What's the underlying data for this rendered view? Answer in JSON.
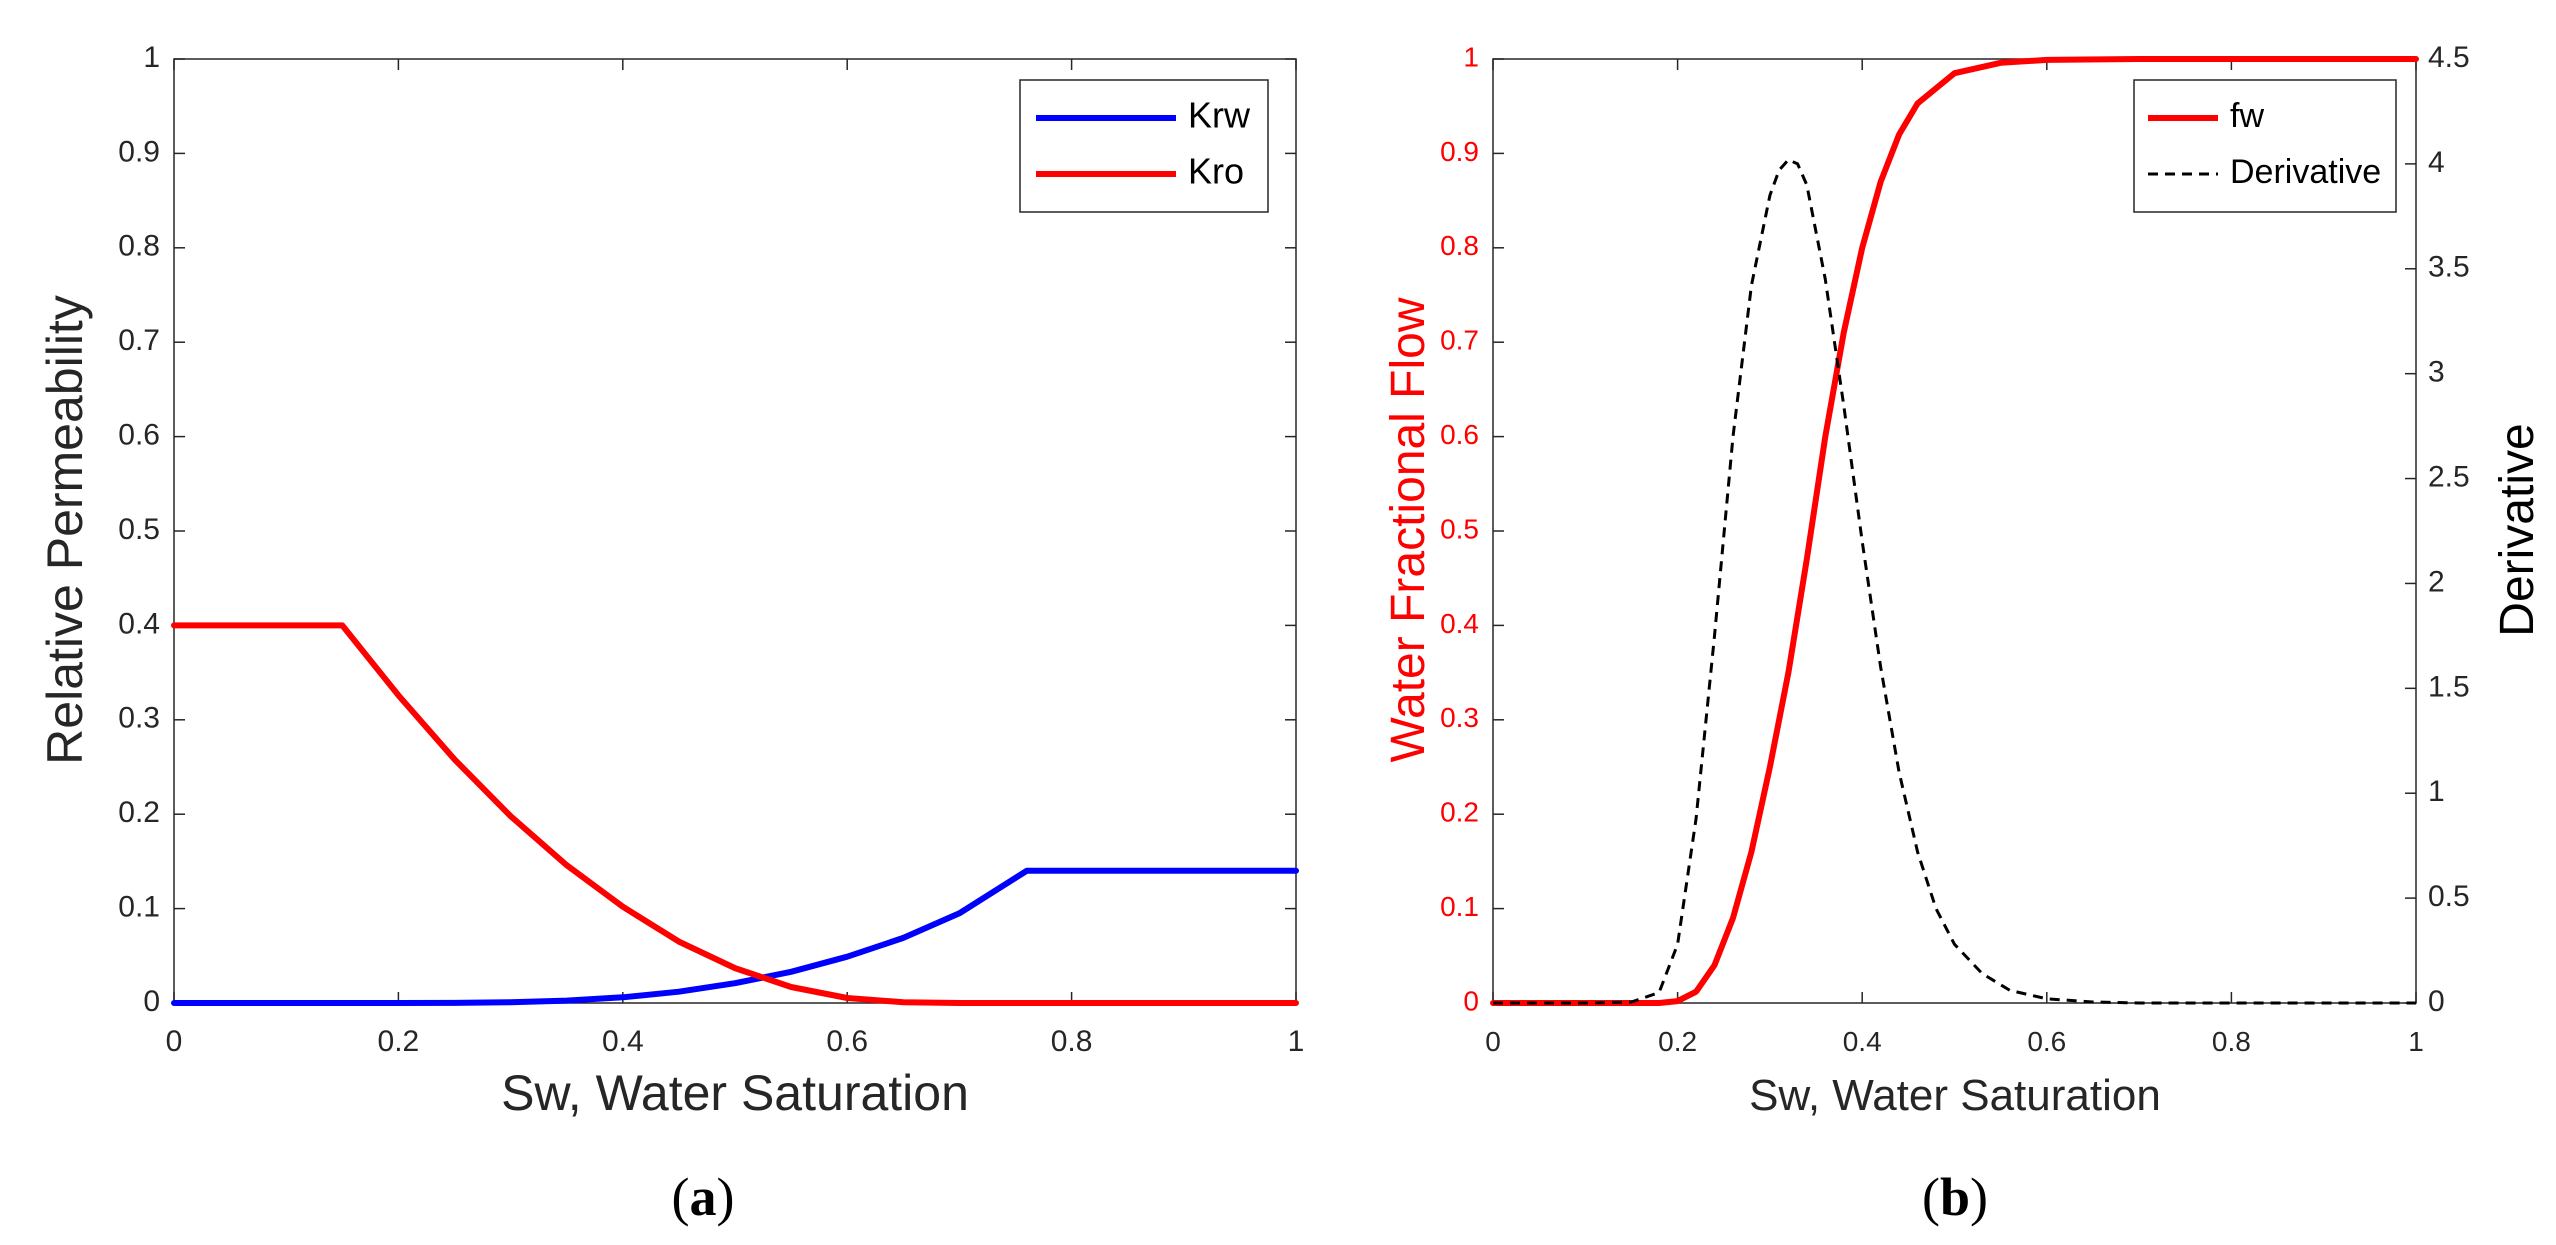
{
  "chart_data": [
    {
      "panel": "a",
      "panel_label": {
        "open": "(",
        "letter": "a",
        "close": ")"
      },
      "type": "line",
      "title": "",
      "xlabel": "Sw, Water Saturation",
      "ylabel": "Relative Permeability",
      "xlim": [
        0,
        1
      ],
      "ylim": [
        0,
        1
      ],
      "xticks": [
        "0",
        "0.2",
        "0.4",
        "0.6",
        "0.8",
        "1"
      ],
      "yticks": [
        "0",
        "0.1",
        "0.2",
        "0.3",
        "0.4",
        "0.5",
        "0.6",
        "0.7",
        "0.8",
        "0.9",
        "1"
      ],
      "grid": false,
      "legend_position": "top-right",
      "series": [
        {
          "name": "Krw",
          "color": "#0000ff",
          "style": "solid",
          "x": [
            0,
            0.1,
            0.2,
            0.25,
            0.3,
            0.35,
            0.4,
            0.45,
            0.5,
            0.55,
            0.6,
            0.65,
            0.7,
            0.76,
            0.8,
            0.9,
            1.0
          ],
          "y": [
            0,
            0,
            0,
            0.0001,
            0.0008,
            0.0025,
            0.006,
            0.012,
            0.021,
            0.033,
            0.049,
            0.069,
            0.095,
            0.14,
            0.14,
            0.14,
            0.14
          ]
        },
        {
          "name": "Kro",
          "color": "#ff0000",
          "style": "solid",
          "x": [
            0,
            0.05,
            0.1,
            0.15,
            0.2,
            0.25,
            0.3,
            0.35,
            0.4,
            0.45,
            0.5,
            0.55,
            0.6,
            0.65,
            0.7,
            0.76,
            0.8,
            0.9,
            1.0
          ],
          "y": [
            0.4,
            0.4,
            0.4,
            0.4,
            0.326,
            0.258,
            0.198,
            0.146,
            0.102,
            0.065,
            0.037,
            0.017,
            0.0053,
            0.0008,
            0,
            0,
            0,
            0,
            0
          ]
        }
      ]
    },
    {
      "panel": "b",
      "panel_label": {
        "open": "(",
        "letter": "b",
        "close": ")"
      },
      "type": "line",
      "title": "",
      "xlabel": "Sw, Water Saturation",
      "ylabel": "Water Fractional Flow",
      "ylabel_color": "#ff0000",
      "y2label": "Derivative",
      "xlim": [
        0,
        1
      ],
      "ylim": [
        0,
        1
      ],
      "y2lim": [
        0,
        4.5
      ],
      "xticks": [
        "0",
        "0.2",
        "0.4",
        "0.6",
        "0.8",
        "1"
      ],
      "yticks": [
        "0",
        "0.1",
        "0.2",
        "0.3",
        "0.4",
        "0.5",
        "0.6",
        "0.7",
        "0.8",
        "0.9",
        "1"
      ],
      "y2ticks": [
        "0",
        "0.5",
        "1",
        "1.5",
        "2",
        "2.5",
        "3",
        "3.5",
        "4",
        "4.5"
      ],
      "grid": false,
      "legend_position": "top-right",
      "series": [
        {
          "name": "fw",
          "axis": "left",
          "color": "#ff0000",
          "style": "solid",
          "x": [
            0,
            0.1,
            0.18,
            0.2,
            0.22,
            0.24,
            0.26,
            0.28,
            0.3,
            0.32,
            0.34,
            0.36,
            0.38,
            0.4,
            0.42,
            0.44,
            0.46,
            0.5,
            0.55,
            0.6,
            0.7,
            0.8,
            0.9,
            1.0
          ],
          "y": [
            0,
            0,
            0,
            0.002,
            0.012,
            0.04,
            0.09,
            0.16,
            0.25,
            0.35,
            0.47,
            0.6,
            0.71,
            0.8,
            0.87,
            0.92,
            0.953,
            0.985,
            0.996,
            0.999,
            1,
            1,
            1,
            1
          ]
        },
        {
          "name": "Derivative",
          "axis": "right",
          "color": "#000000",
          "style": "dashed",
          "x": [
            0,
            0.1,
            0.15,
            0.18,
            0.2,
            0.22,
            0.24,
            0.26,
            0.28,
            0.3,
            0.31,
            0.32,
            0.33,
            0.34,
            0.36,
            0.38,
            0.4,
            0.42,
            0.44,
            0.46,
            0.48,
            0.5,
            0.53,
            0.56,
            0.6,
            0.65,
            0.7,
            0.8,
            0.9,
            1.0
          ],
          "y": [
            0,
            0,
            0.005,
            0.05,
            0.28,
            0.88,
            1.75,
            2.7,
            3.42,
            3.85,
            3.97,
            4.02,
            4.0,
            3.9,
            3.45,
            2.85,
            2.2,
            1.6,
            1.1,
            0.72,
            0.45,
            0.28,
            0.14,
            0.06,
            0.02,
            0.005,
            0,
            0,
            0,
            0
          ]
        }
      ]
    }
  ]
}
